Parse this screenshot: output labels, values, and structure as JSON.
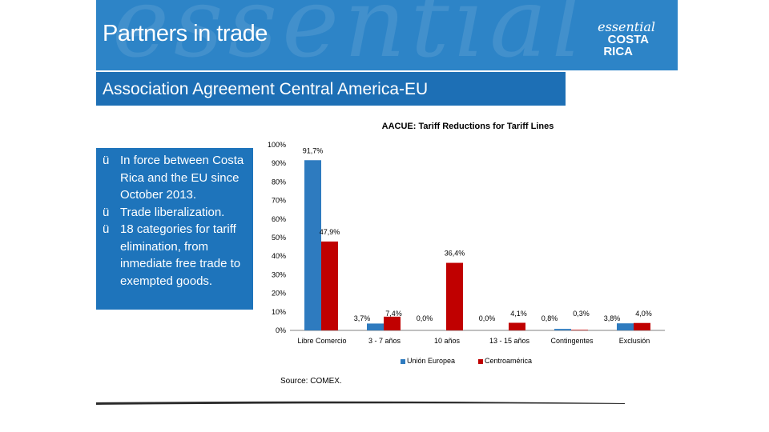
{
  "header": {
    "title": "Partners in trade",
    "watermark": "essential",
    "logo": {
      "script": "essential",
      "line1": "COSTA",
      "line2": "RICA"
    }
  },
  "subtitle": "Association Agreement Central America-EU",
  "bullets": [
    {
      "check": "ü",
      "text": "In force between Costa Rica and the EU since October 2013."
    },
    {
      "check": "ü",
      "text": "Trade liberalization."
    },
    {
      "check": "ü",
      "text": "18 categories for tariff elimination, from inmediate free trade to exempted goods."
    }
  ],
  "colors": {
    "header": "#2d84c7",
    "subtitle_bar": "#1d6fb5",
    "bullet_box": "#1e74bb",
    "series_eu": "#2e7bbf",
    "series_ca": "#c00000"
  },
  "chart_data": {
    "type": "bar",
    "title": "AACUE: Tariff Reductions for Tariff Lines",
    "categories": [
      "Libre Comercio",
      "3 - 7 años",
      "10 años",
      "13 - 15 años",
      "Contingentes",
      "Exclusión"
    ],
    "series": [
      {
        "name": "Unión Europea",
        "values": [
          91.7,
          3.7,
          0.0,
          0.0,
          0.8,
          3.8
        ],
        "labels": [
          "91,7%",
          "3,7%",
          "0,0%",
          "0,0%",
          "0,8%",
          "3,8%"
        ]
      },
      {
        "name": "Centroamérica",
        "values": [
          47.9,
          7.4,
          36.4,
          4.1,
          0.3,
          4.0
        ],
        "labels": [
          "47,9%",
          "7,4%",
          "36,4%",
          "4,1%",
          "0,3%",
          "4,0%"
        ]
      }
    ],
    "y_ticks": [
      "0%",
      "10%",
      "20%",
      "30%",
      "40%",
      "50%",
      "60%",
      "70%",
      "80%",
      "90%",
      "100%"
    ],
    "ylim": [
      0,
      100
    ],
    "legend": "bottom",
    "source": "Source: COMEX."
  }
}
